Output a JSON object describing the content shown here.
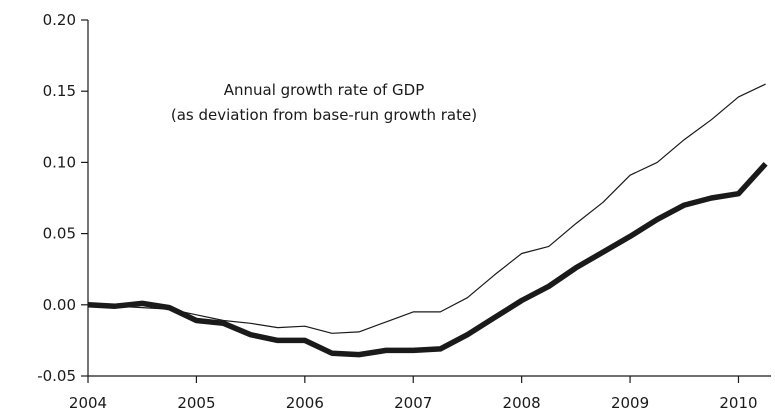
{
  "chart_data": {
    "type": "line",
    "title": "",
    "xlabel": "",
    "ylabel": "",
    "annotation": [
      "Annual growth rate of GDP",
      "(as deviation from base-run growth rate)"
    ],
    "xlim": [
      2004,
      2010.3
    ],
    "ylim": [
      -0.05,
      0.2
    ],
    "x_ticks": [
      "2004",
      "2005",
      "2006",
      "2007",
      "2008",
      "2009",
      "2010"
    ],
    "y_ticks": [
      "-0.05",
      "0.00",
      "0.05",
      "0.10",
      "0.15",
      "0.20"
    ],
    "grid": false,
    "legend": "none",
    "x": [
      2004.0,
      2004.25,
      2004.5,
      2004.75,
      2005.0,
      2005.25,
      2005.5,
      2005.75,
      2006.0,
      2006.25,
      2006.5,
      2006.75,
      2007.0,
      2007.25,
      2007.5,
      2007.75,
      2008.0,
      2008.25,
      2008.5,
      2008.75,
      2009.0,
      2009.25,
      2009.5,
      2009.75,
      2010.0,
      2010.25
    ],
    "series": [
      {
        "style": "thin",
        "color": "#1a1a1a",
        "values": [
          0.0,
          -0.001,
          -0.002,
          -0.003,
          -0.007,
          -0.011,
          -0.013,
          -0.016,
          -0.015,
          -0.02,
          -0.019,
          -0.012,
          -0.005,
          -0.005,
          0.005,
          0.021,
          0.036,
          0.041,
          0.057,
          0.072,
          0.091,
          0.1,
          0.116,
          0.13,
          0.146,
          0.155
        ]
      },
      {
        "style": "thick",
        "color": "#1a1a1a",
        "values": [
          0.0,
          -0.001,
          0.001,
          -0.002,
          -0.011,
          -0.013,
          -0.021,
          -0.025,
          -0.025,
          -0.034,
          -0.035,
          -0.032,
          -0.032,
          -0.031,
          -0.021,
          -0.009,
          0.003,
          0.013,
          0.026,
          0.037,
          0.048,
          0.06,
          0.07,
          0.075,
          0.078,
          0.099
        ]
      }
    ]
  }
}
